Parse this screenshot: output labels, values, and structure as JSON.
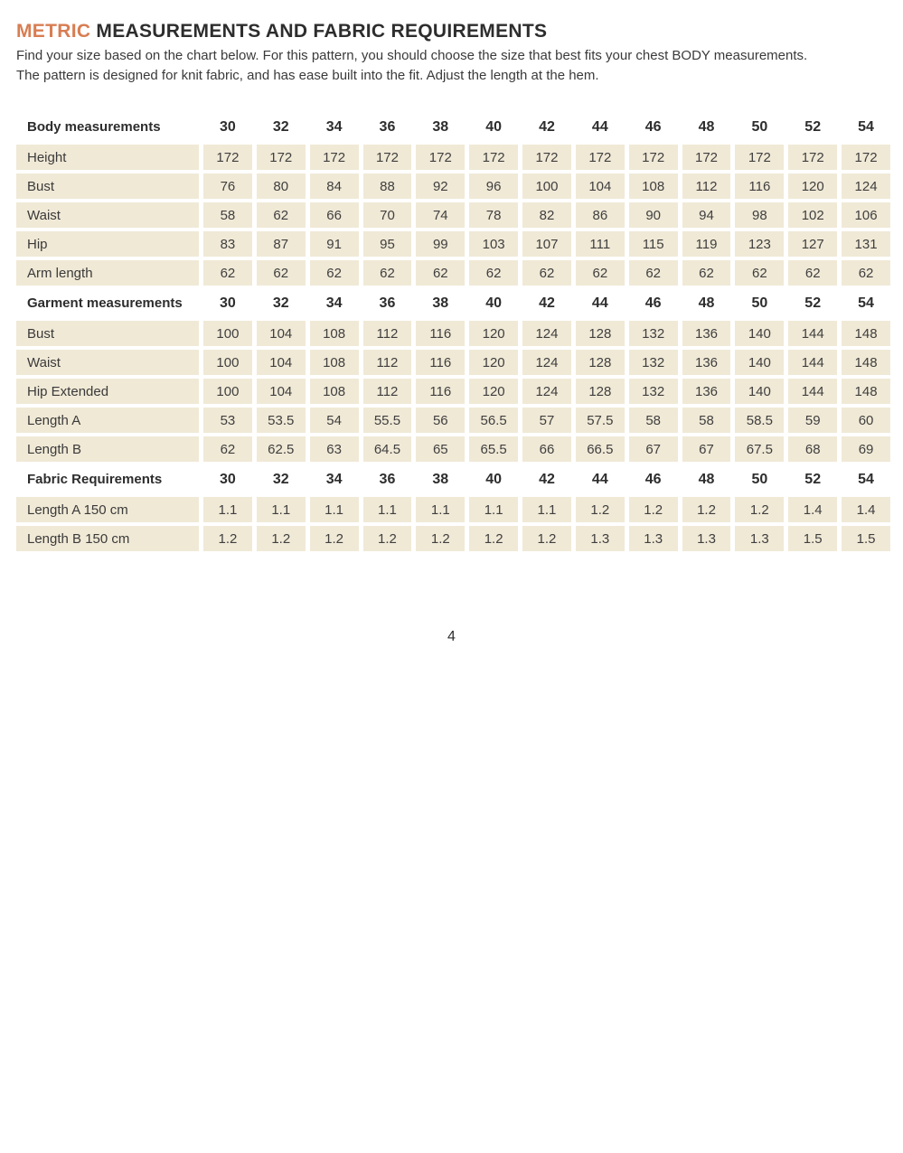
{
  "header": {
    "title_accent": "METRIC",
    "title_rest": " MEASUREMENTS AND FABRIC REQUIREMENTS",
    "intro_line1": "Find your size based on the chart below. For this pattern, you should choose the size that best fits your chest BODY measurements.",
    "intro_line2": "The pattern is designed for knit fabric, and has ease built into the fit.  Adjust the length at the hem."
  },
  "footer": {
    "page_number": "4"
  },
  "colors": {
    "accent_orange": "#d87d52",
    "cell_beige": "#f0e9d6",
    "title_dark": "#2d2d2d",
    "body_text": "#3a3a3a"
  },
  "table": {
    "sizes": [
      "30",
      "32",
      "34",
      "36",
      "38",
      "40",
      "42",
      "44",
      "46",
      "48",
      "50",
      "52",
      "54"
    ],
    "sections": [
      {
        "header": "Body measurements",
        "rows": [
          {
            "label": "Height",
            "values": [
              "172",
              "172",
              "172",
              "172",
              "172",
              "172",
              "172",
              "172",
              "172",
              "172",
              "172",
              "172",
              "172"
            ]
          },
          {
            "label": "Bust",
            "values": [
              "76",
              "80",
              "84",
              "88",
              "92",
              "96",
              "100",
              "104",
              "108",
              "112",
              "116",
              "120",
              "124"
            ]
          },
          {
            "label": "Waist",
            "values": [
              "58",
              "62",
              "66",
              "70",
              "74",
              "78",
              "82",
              "86",
              "90",
              "94",
              "98",
              "102",
              "106"
            ]
          },
          {
            "label": "Hip",
            "values": [
              "83",
              "87",
              "91",
              "95",
              "99",
              "103",
              "107",
              "111",
              "115",
              "119",
              "123",
              "127",
              "131"
            ]
          },
          {
            "label": "Arm length",
            "values": [
              "62",
              "62",
              "62",
              "62",
              "62",
              "62",
              "62",
              "62",
              "62",
              "62",
              "62",
              "62",
              "62"
            ]
          }
        ]
      },
      {
        "header": "Garment measurements",
        "rows": [
          {
            "label": "Bust",
            "values": [
              "100",
              "104",
              "108",
              "112",
              "116",
              "120",
              "124",
              "128",
              "132",
              "136",
              "140",
              "144",
              "148"
            ]
          },
          {
            "label": "Waist",
            "values": [
              "100",
              "104",
              "108",
              "112",
              "116",
              "120",
              "124",
              "128",
              "132",
              "136",
              "140",
              "144",
              "148"
            ]
          },
          {
            "label": "Hip Extended",
            "values": [
              "100",
              "104",
              "108",
              "112",
              "116",
              "120",
              "124",
              "128",
              "132",
              "136",
              "140",
              "144",
              "148"
            ]
          },
          {
            "label": "Length A",
            "values": [
              "53",
              "53.5",
              "54",
              "55.5",
              "56",
              "56.5",
              "57",
              "57.5",
              "58",
              "58",
              "58.5",
              "59",
              "60"
            ]
          },
          {
            "label": "Length B",
            "values": [
              "62",
              "62.5",
              "63",
              "64.5",
              "65",
              "65.5",
              "66",
              "66.5",
              "67",
              "67",
              "67.5",
              "68",
              "69"
            ]
          }
        ]
      },
      {
        "header": "Fabric Requirements",
        "rows": [
          {
            "label": "Length A 150 cm",
            "values": [
              "1.1",
              "1.1",
              "1.1",
              "1.1",
              "1.1",
              "1.1",
              "1.1",
              "1.2",
              "1.2",
              "1.2",
              "1.2",
              "1.4",
              "1.4"
            ]
          },
          {
            "label": "Length B 150 cm",
            "values": [
              "1.2",
              "1.2",
              "1.2",
              "1.2",
              "1.2",
              "1.2",
              "1.2",
              "1.3",
              "1.3",
              "1.3",
              "1.3",
              "1.5",
              "1.5"
            ]
          }
        ]
      }
    ]
  }
}
